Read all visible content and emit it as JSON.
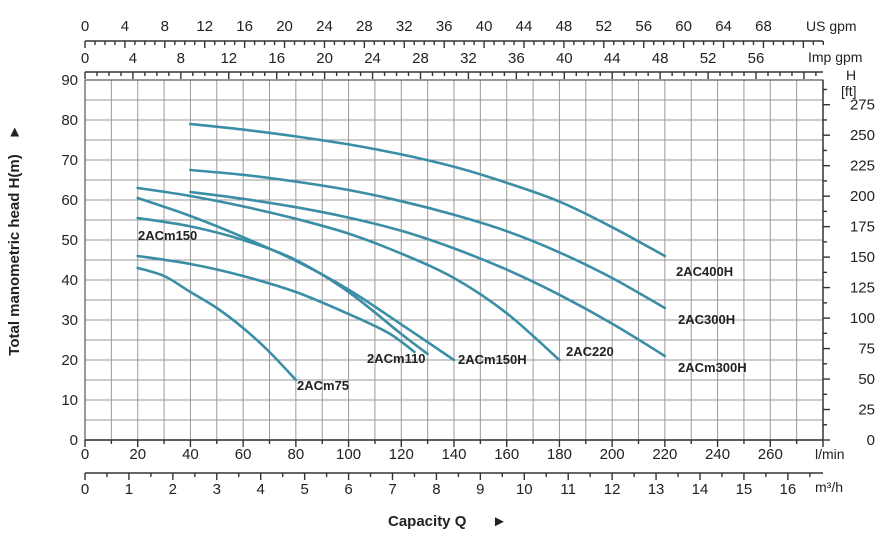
{
  "chart_data": {
    "type": "line",
    "xlabel": "Capacity Q",
    "ylabel": "Total manometric head H(m)",
    "x_unit": "l/min",
    "xlim": [
      0,
      280
    ],
    "ylim": [
      0,
      90
    ],
    "y_ticks": [
      0,
      10,
      20,
      30,
      40,
      50,
      60,
      70,
      80,
      90
    ],
    "x_ticks": [
      0,
      20,
      40,
      60,
      80,
      100,
      120,
      140,
      160,
      180,
      200,
      220,
      240,
      260
    ],
    "grid": true,
    "line_color": "#3b8ea5",
    "top_axes": [
      {
        "unit": "US gpm",
        "ticks": [
          "0",
          "4",
          "8",
          "12",
          "16",
          "20",
          "24",
          "28",
          "32",
          "36",
          "40",
          "44",
          "48",
          "52",
          "56",
          "60",
          "64",
          "68"
        ]
      },
      {
        "unit": "Imp gpm",
        "ticks": [
          "0",
          "4",
          "8",
          "12",
          "16",
          "20",
          "24",
          "28",
          "32",
          "36",
          "40",
          "44",
          "48",
          "52",
          "56"
        ]
      }
    ],
    "bottom_axis2": {
      "unit": "m³/h",
      "ticks": [
        "0",
        "1",
        "2",
        "3",
        "4",
        "5",
        "6",
        "7",
        "8",
        "9",
        "10",
        "11",
        "12",
        "13",
        "14",
        "15",
        "16"
      ]
    },
    "right_axis": {
      "unit_line1": "H",
      "unit_line2": "[ft]",
      "ticks": [
        "0",
        "25",
        "50",
        "75",
        "100",
        "125",
        "150",
        "175",
        "200",
        "225",
        "250",
        "275"
      ]
    },
    "series": [
      {
        "name": "2AC400H",
        "x": [
          40,
          60,
          80,
          100,
          120,
          140,
          160,
          180,
          200,
          220
        ],
        "y": [
          79,
          77.6,
          75.9,
          73.9,
          71.4,
          68.3,
          64.3,
          59.6,
          53.2,
          46
        ]
      },
      {
        "name": "2AC300H",
        "x": [
          40,
          60,
          80,
          100,
          120,
          140,
          160,
          180,
          200,
          220
        ],
        "y": [
          67.5,
          66.3,
          64.6,
          62.5,
          59.7,
          56.3,
          52.2,
          46.9,
          40.5,
          33
        ]
      },
      {
        "name": "2ACm300H",
        "x": [
          40,
          60,
          80,
          100,
          120,
          140,
          160,
          180,
          200,
          220
        ],
        "y": [
          62,
          60.3,
          58.2,
          55.6,
          52.3,
          47.9,
          42.6,
          36.3,
          29.1,
          21
        ]
      },
      {
        "name": "2AC220",
        "x": [
          20,
          40,
          60,
          80,
          100,
          120,
          140,
          160,
          180
        ],
        "y": [
          63,
          61,
          58.4,
          55.3,
          51.6,
          46.6,
          40.5,
          31.7,
          20
        ]
      },
      {
        "name": "2ACm150H",
        "x": [
          20,
          40,
          60,
          80,
          100,
          120,
          140
        ],
        "y": [
          60.5,
          56,
          50.7,
          44.8,
          37.6,
          28.9,
          20
        ]
      },
      {
        "name": "2ACm150",
        "x": [
          20,
          40,
          60,
          80,
          100,
          120,
          130
        ],
        "y": [
          55.5,
          53.4,
          50,
          45,
          37,
          26.5,
          21.5
        ]
      },
      {
        "name": "2ACm110",
        "x": [
          20,
          40,
          60,
          80,
          100,
          115,
          125
        ],
        "y": [
          46,
          44,
          41,
          37,
          31.5,
          26.8,
          22
        ]
      },
      {
        "name": "2ACm75",
        "x": [
          20,
          30,
          40,
          50,
          60,
          70,
          80
        ],
        "y": [
          43,
          41,
          37,
          33,
          28,
          22,
          15
        ]
      }
    ]
  }
}
